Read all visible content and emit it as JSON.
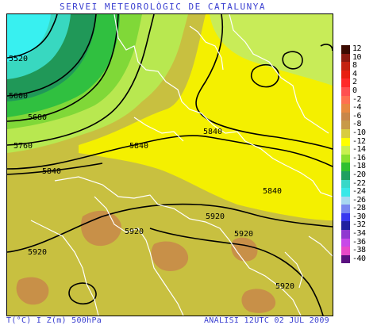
{
  "header": {
    "title": "SERVEI METEOROLÒGIC DE CATALUNYA"
  },
  "footer": {
    "left": "T(°C) I Z(m) 500hPa",
    "right": "ANÀLISI 12UTC 02 JUL 2009"
  },
  "legend": {
    "items": [
      {
        "label": "12",
        "color": "#3b0a00"
      },
      {
        "label": "10",
        "color": "#8b1a10"
      },
      {
        "label": "8",
        "color": "#c42210"
      },
      {
        "label": "4",
        "color": "#e81e10"
      },
      {
        "label": "2",
        "color": "#ff2a2a"
      },
      {
        "label": "0",
        "color": "#ff5050"
      },
      {
        "label": "-2",
        "color": "#ff7050"
      },
      {
        "label": "-4",
        "color": "#e88840"
      },
      {
        "label": "-6",
        "color": "#c8864a"
      },
      {
        "label": "-8",
        "color": "#c89a48"
      },
      {
        "label": "-10",
        "color": "#d8cc40"
      },
      {
        "label": "-12",
        "color": "#ffff00"
      },
      {
        "label": "-14",
        "color": "#c8f050"
      },
      {
        "label": "-16",
        "color": "#88e030"
      },
      {
        "label": "-18",
        "color": "#30c030"
      },
      {
        "label": "-20",
        "color": "#20a060"
      },
      {
        "label": "-22",
        "color": "#38d8c8"
      },
      {
        "label": "-24",
        "color": "#38e8e8"
      },
      {
        "label": "-26",
        "color": "#a8d8f0"
      },
      {
        "label": "-28",
        "color": "#7888f0"
      },
      {
        "label": "-30",
        "color": "#3838f0"
      },
      {
        "label": "-32",
        "color": "#2020a0"
      },
      {
        "label": "-34",
        "color": "#9038d0"
      },
      {
        "label": "-36",
        "color": "#c848e8"
      },
      {
        "label": "-38",
        "color": "#e848c8"
      },
      {
        "label": "-40",
        "color": "#5a1080"
      }
    ]
  },
  "map": {
    "contour_labels": [
      "5520",
      "5600",
      "5680",
      "5760",
      "5840",
      "5840",
      "5840",
      "5840",
      "5920",
      "5920",
      "5920",
      "5920",
      "5920"
    ]
  }
}
